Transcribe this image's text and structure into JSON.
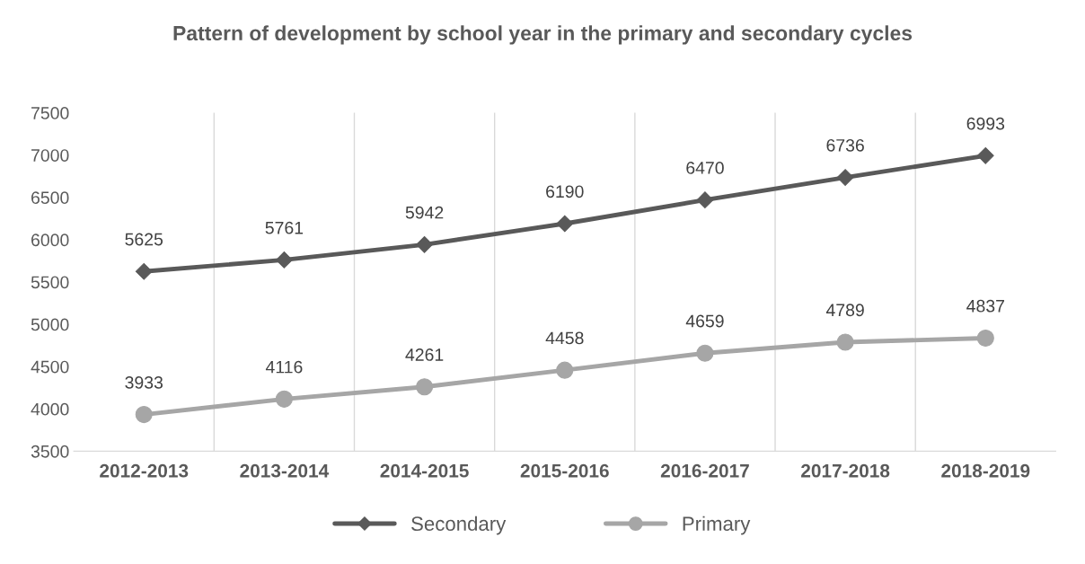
{
  "chart_data": {
    "type": "line",
    "title": "Pattern of development by school year in the primary and secondary cycles",
    "categories": [
      "2012-2013",
      "2013-2014",
      "2014-2015",
      "2015-2016",
      "2016-2017",
      "2017-2018",
      "2018-2019"
    ],
    "series": [
      {
        "name": "Secondary",
        "color": "#595959",
        "marker": "diamond",
        "values": [
          5625,
          5761,
          5942,
          6190,
          6470,
          6736,
          6993
        ]
      },
      {
        "name": "Primary",
        "color": "#a6a6a6",
        "marker": "circle",
        "values": [
          3933,
          4116,
          4261,
          4458,
          4659,
          4789,
          4837
        ]
      }
    ],
    "ylim": [
      3500,
      7500
    ],
    "yticks": [
      3500,
      4000,
      4500,
      5000,
      5500,
      6000,
      6500,
      7000,
      7500
    ],
    "grid": "x",
    "legend": "bottom",
    "data_labels": true,
    "line_style": "solid"
  }
}
